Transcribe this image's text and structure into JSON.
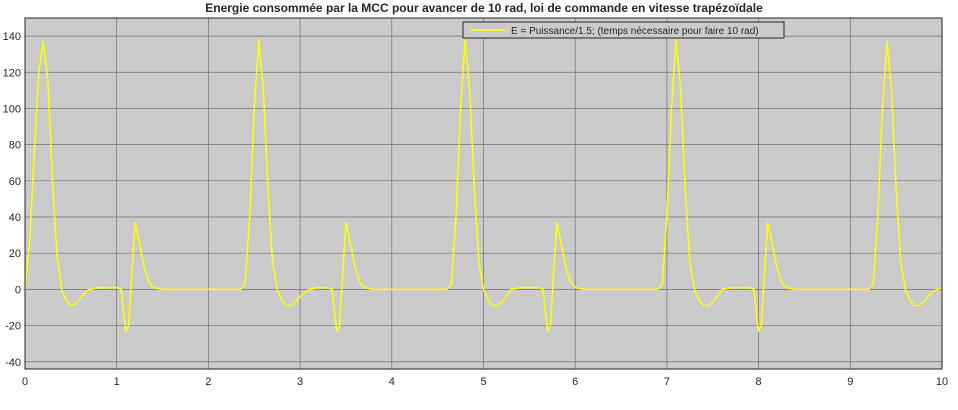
{
  "chart_data": {
    "type": "line",
    "title": "Energie consommée par la MCC pour avancer de 10 rad, loi de commande en vitesse trapézoïdale",
    "xlabel": "",
    "ylabel": "",
    "xlim": [
      0,
      10
    ],
    "ylim": [
      -44,
      150
    ],
    "grid": true,
    "legend_position": "top-right",
    "x_ticks": [
      "0",
      "1",
      "2",
      "3",
      "4",
      "5",
      "6",
      "7",
      "8",
      "9",
      "10"
    ],
    "y_ticks": [
      "-40",
      "-20",
      "0",
      "20",
      "40",
      "60",
      "80",
      "100",
      "120",
      "140"
    ],
    "series": [
      {
        "name": "E = Puissance/1.5; (temps nécessaire  pour faire 10 rad)",
        "color": "#ffff00",
        "x": [
          0,
          0.05,
          0.1,
          0.15,
          0.2,
          0.25,
          0.3,
          0.35,
          0.4,
          0.45,
          0.5,
          0.55,
          0.6,
          0.65,
          0.7,
          0.8,
          0.9,
          1.0,
          1.05,
          1.08,
          1.1,
          1.13,
          1.16,
          1.2,
          1.25,
          1.3,
          1.35,
          1.4,
          1.5,
          1.7,
          2.0,
          2.2,
          2.3,
          2.35,
          2.4,
          2.45,
          2.5,
          2.55,
          2.6,
          2.65,
          2.7,
          2.75,
          2.8,
          2.85,
          2.9,
          2.95,
          3.0,
          3.1,
          3.2,
          3.3,
          3.35,
          3.38,
          3.4,
          3.43,
          3.46,
          3.5,
          3.55,
          3.6,
          3.65,
          3.7,
          3.8,
          4.0,
          4.3,
          4.5,
          4.6,
          4.65,
          4.7,
          4.75,
          4.8,
          4.85,
          4.9,
          4.95,
          5.0,
          5.05,
          5.1,
          5.15,
          5.2,
          5.25,
          5.3,
          5.4,
          5.5,
          5.6,
          5.65,
          5.68,
          5.7,
          5.73,
          5.76,
          5.8,
          5.85,
          5.9,
          5.95,
          6.0,
          6.1,
          6.3,
          6.6,
          6.8,
          6.9,
          6.95,
          7.0,
          7.05,
          7.1,
          7.15,
          7.2,
          7.25,
          7.3,
          7.35,
          7.4,
          7.45,
          7.5,
          7.55,
          7.6,
          7.7,
          7.8,
          7.9,
          7.95,
          7.98,
          8.0,
          8.03,
          8.06,
          8.1,
          8.15,
          8.2,
          8.25,
          8.3,
          8.4,
          8.6,
          8.9,
          9.1,
          9.2,
          9.25,
          9.3,
          9.35,
          9.4,
          9.45,
          9.5,
          9.55,
          9.6,
          9.65,
          9.7,
          9.75,
          9.8,
          9.85,
          9.9,
          9.95,
          10.0
        ],
        "y": [
          0,
          25,
          75,
          120,
          137,
          115,
          60,
          18,
          0,
          -6,
          -9,
          -8,
          -5,
          -2,
          0,
          1,
          1,
          1,
          0,
          -15,
          -23,
          -20,
          5,
          37,
          25,
          12,
          4,
          1,
          0,
          0,
          0,
          0,
          0,
          0,
          3,
          40,
          100,
          138,
          110,
          55,
          15,
          0,
          -6,
          -9,
          -9,
          -7,
          -4,
          0,
          1,
          1,
          0,
          -15,
          -23,
          -20,
          5,
          37,
          25,
          12,
          4,
          1,
          0,
          0,
          0,
          0,
          0,
          3,
          40,
          100,
          138,
          110,
          55,
          15,
          0,
          -6,
          -9,
          -9,
          -7,
          -4,
          0,
          1,
          1,
          1,
          0,
          -15,
          -23,
          -20,
          5,
          37,
          25,
          12,
          4,
          1,
          0,
          0,
          0,
          0,
          0,
          3,
          40,
          100,
          138,
          110,
          55,
          15,
          0,
          -6,
          -9,
          -9,
          -7,
          -4,
          0,
          1,
          1,
          1,
          0,
          -15,
          -23,
          -20,
          5,
          37,
          25,
          12,
          4,
          1,
          0,
          0,
          0,
          0,
          0,
          3,
          40,
          100,
          137,
          110,
          55,
          15,
          0,
          -6,
          -9,
          -9,
          -7,
          -4,
          -1,
          0,
          1
        ]
      }
    ]
  }
}
